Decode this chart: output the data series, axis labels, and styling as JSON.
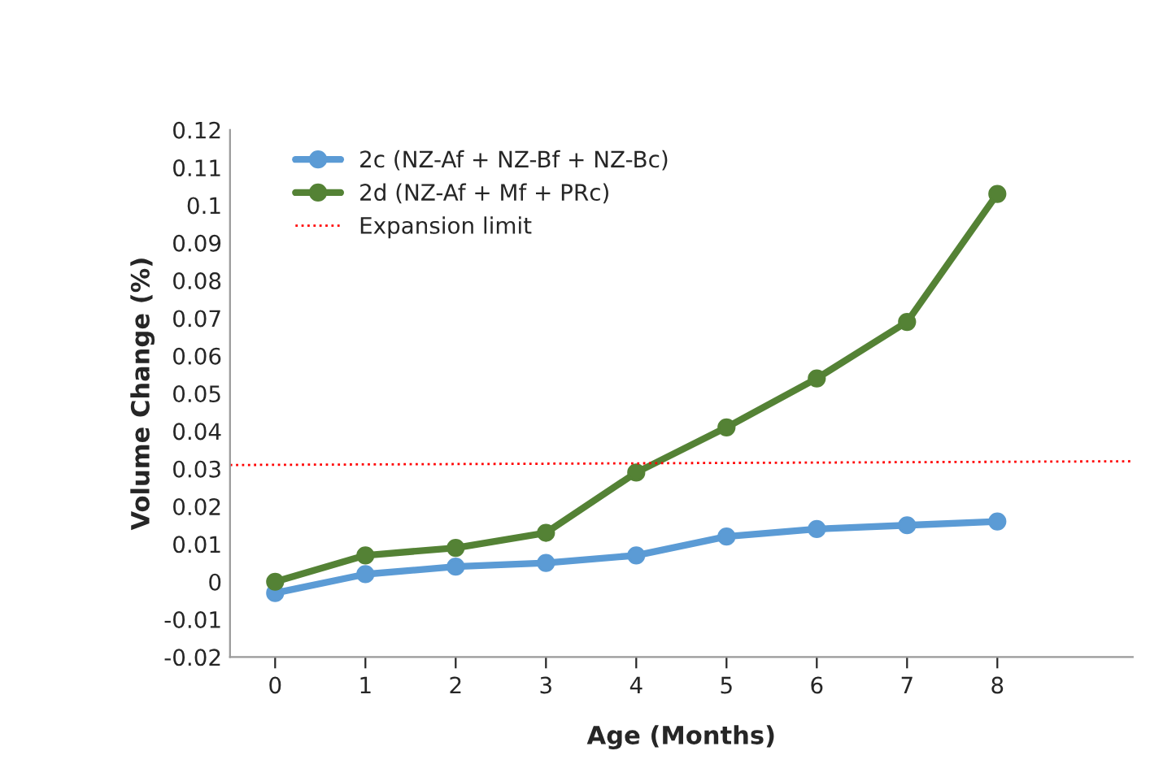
{
  "chart_data": {
    "type": "line",
    "xlabel": "Age (Months)",
    "ylabel": "Volume Change (%)",
    "x": [
      0,
      1,
      2,
      3,
      4,
      5,
      6,
      7,
      8
    ],
    "xlim": [
      -0.5,
      9.5
    ],
    "xticks": [
      0,
      1,
      2,
      3,
      4,
      5,
      6,
      7,
      8
    ],
    "ylim": [
      -0.02,
      0.12
    ],
    "yticks": [
      -0.02,
      -0.01,
      0,
      0.01,
      0.02,
      0.03,
      0.04,
      0.05,
      0.06,
      0.07,
      0.08,
      0.09,
      0.1,
      0.11,
      0.12
    ],
    "grid": false,
    "legend": "top left",
    "marker": "circle",
    "series": [
      {
        "name": "2c (NZ-Af + NZ-Bf + NZ-Bc)",
        "color": "#5b9bd5",
        "values": [
          -0.003,
          0.002,
          0.004,
          0.005,
          0.007,
          0.012,
          0.014,
          0.015,
          0.016
        ]
      },
      {
        "name": "2d (NZ-Af + Mf + PRc)",
        "color": "#548235",
        "values": [
          0,
          0.007,
          0.009,
          0.013,
          0.029,
          0.041,
          0.054,
          0.069,
          0.103
        ]
      },
      {
        "name": "Expansion limit",
        "color": "#ff0000",
        "x": [
          -0.5,
          9.5
        ],
        "values": [
          0.031,
          0.032
        ],
        "marker": "none",
        "line_style": "dotted"
      }
    ]
  }
}
